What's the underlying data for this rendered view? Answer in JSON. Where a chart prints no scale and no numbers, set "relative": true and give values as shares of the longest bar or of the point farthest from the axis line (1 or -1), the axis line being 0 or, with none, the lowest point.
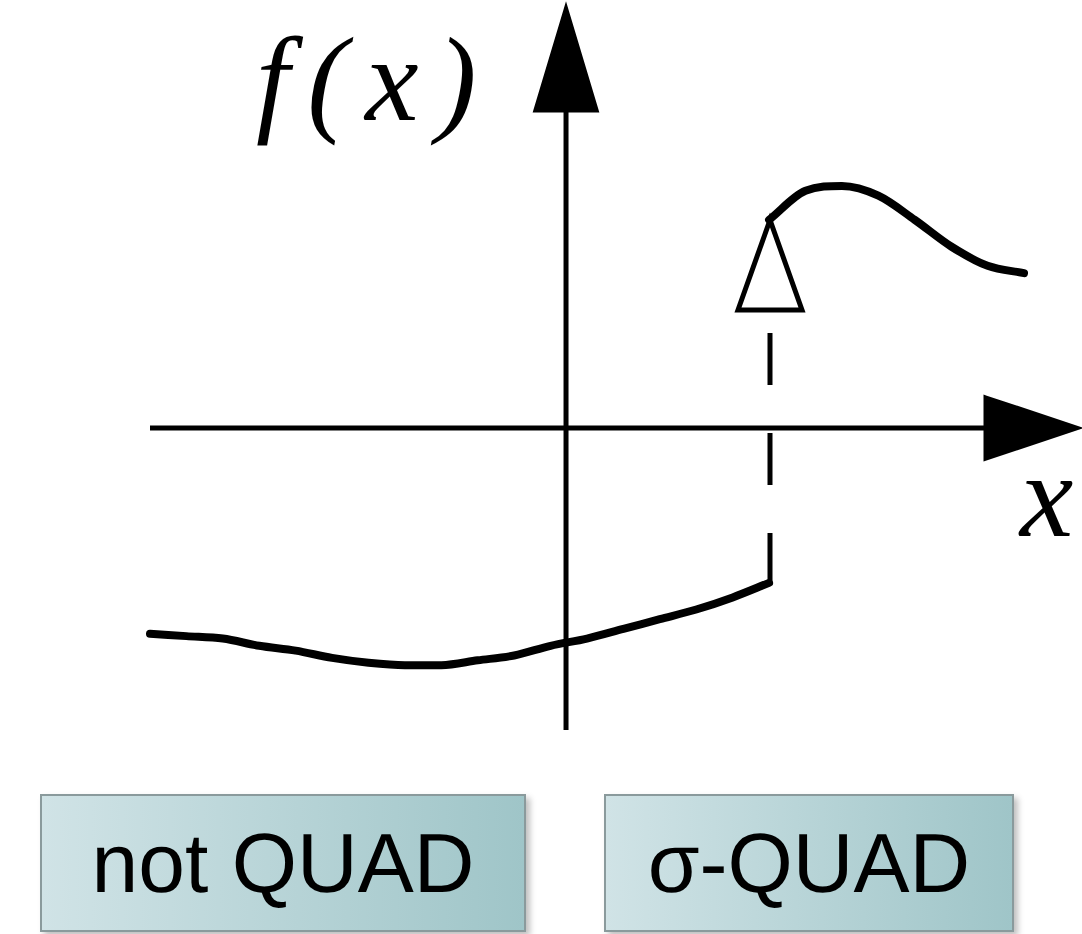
{
  "chart_data": {
    "type": "line",
    "xlabel": "x",
    "ylabel": "f(x)",
    "relative": true,
    "marker": "none",
    "legend": false,
    "categories": [
      null,
      null,
      null,
      null,
      null,
      null,
      null,
      null,
      null,
      null,
      null,
      null,
      null,
      null,
      null,
      null,
      null,
      null,
      null,
      null,
      null,
      null,
      null,
      null,
      null
    ],
    "series": [
      {
        "color": "#000000",
        "values": [
          -0.85,
          -0.86,
          -0.87,
          -0.9,
          -0.92,
          -0.95,
          -0.97,
          -0.98,
          -0.98,
          -0.96,
          -0.94,
          -0.9,
          -0.87,
          -0.83,
          -0.79,
          -0.75,
          -0.7,
          -0.64,
          null,
          null,
          null,
          null,
          null,
          null,
          null
        ]
      },
      {
        "color": "#000000",
        "values": [
          null,
          null,
          null,
          null,
          null,
          null,
          null,
          null,
          null,
          null,
          null,
          null,
          null,
          null,
          null,
          null,
          null,
          0.86,
          0.98,
          1,
          0.96,
          0.86,
          0.75,
          0.67,
          0.64
        ]
      }
    ],
    "annotations": [
      "not QUAD",
      "σ-QUAD"
    ]
  }
}
